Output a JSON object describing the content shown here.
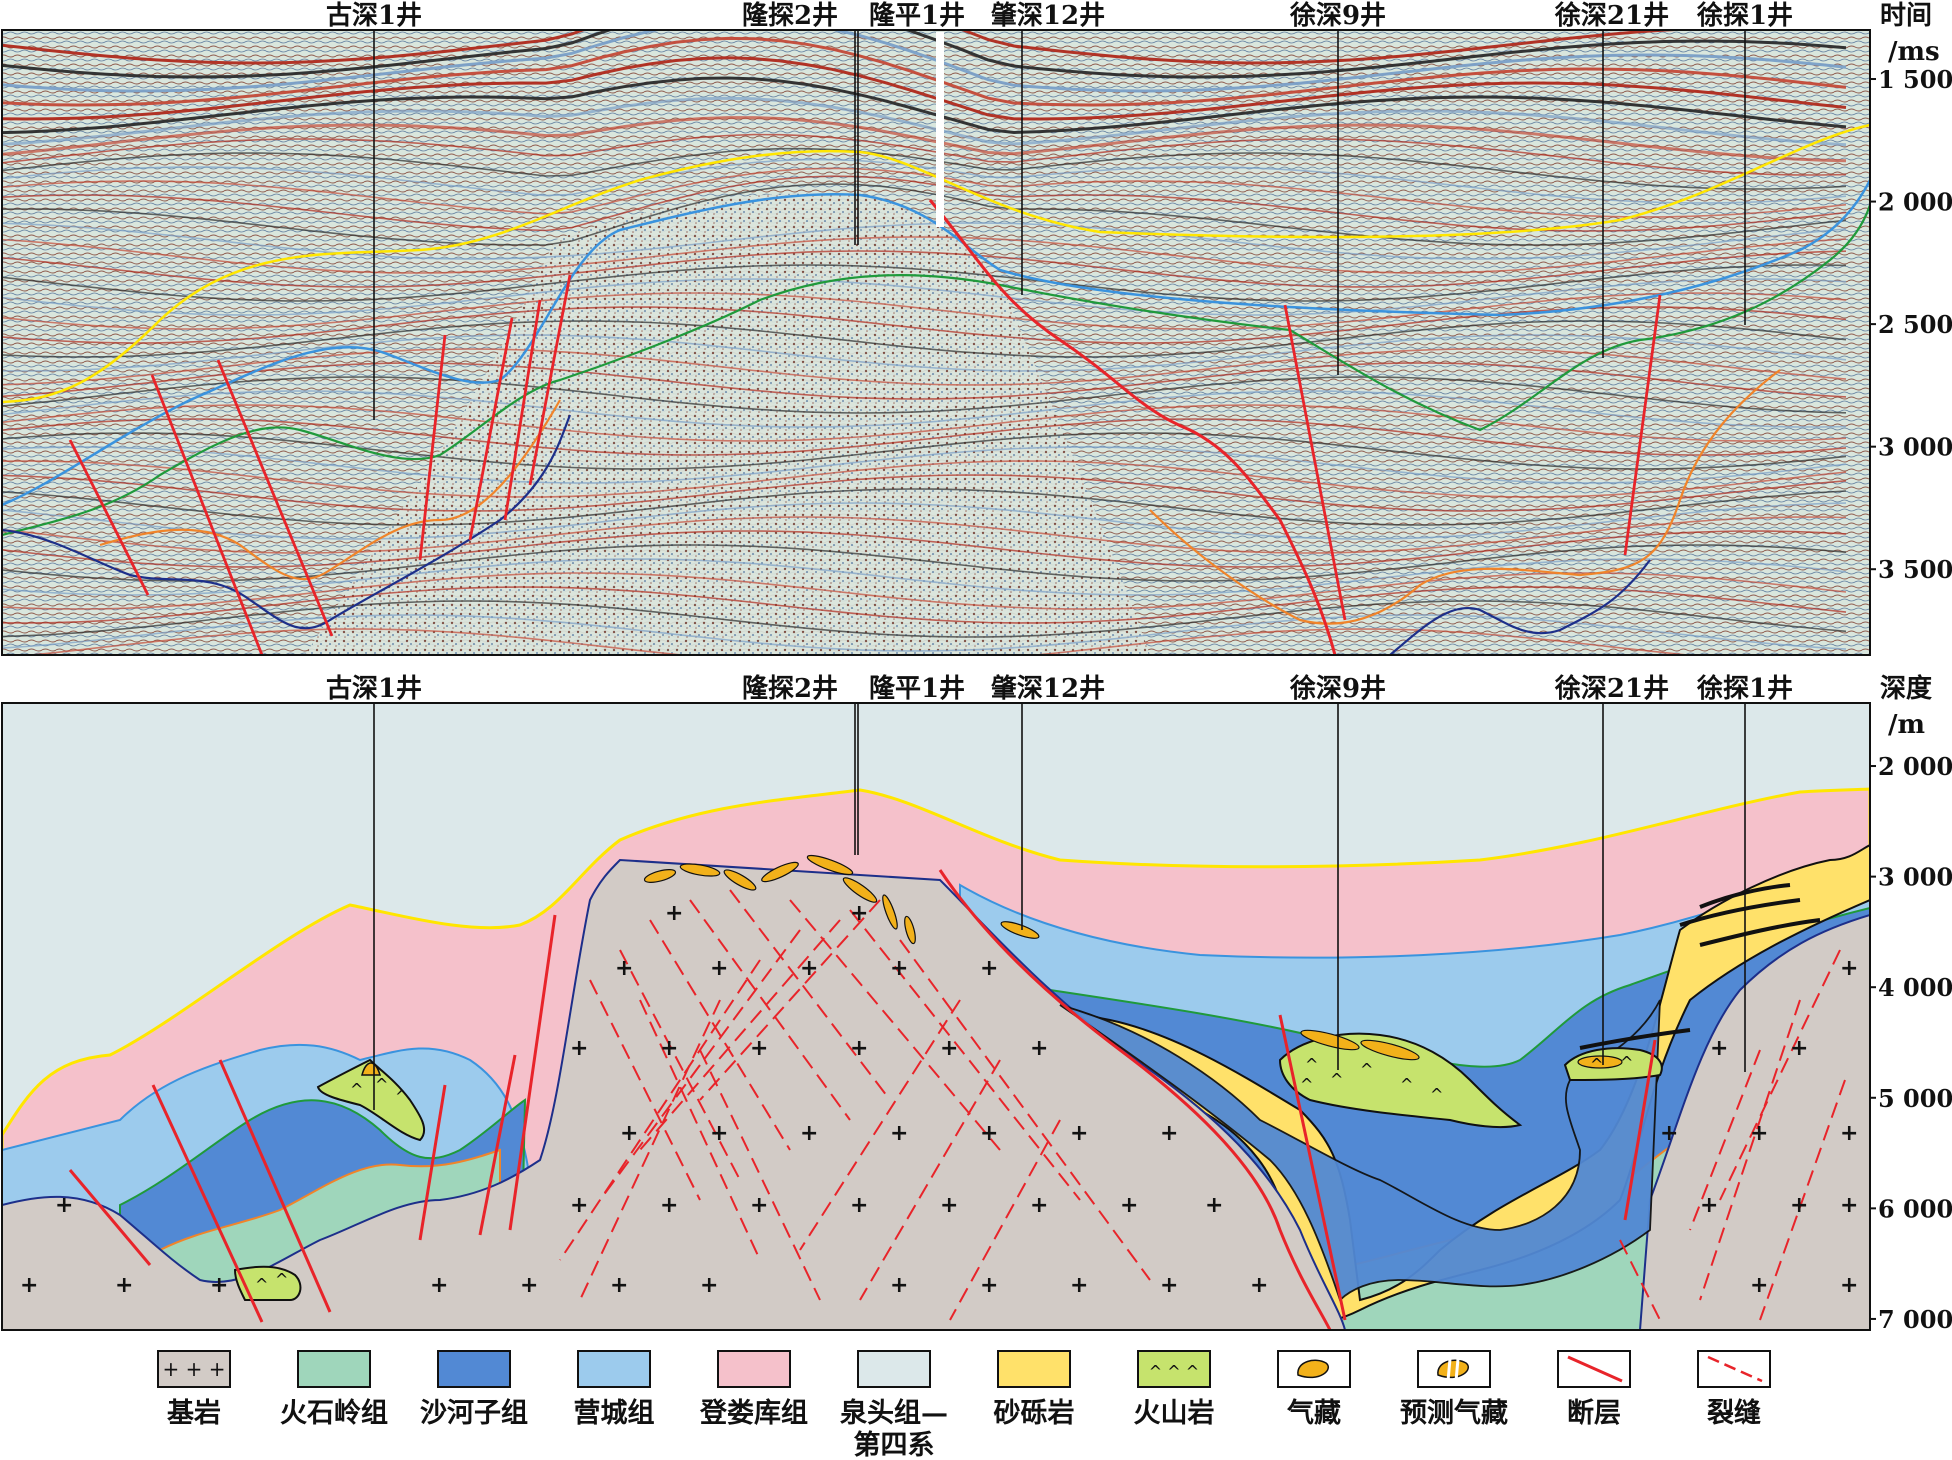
{
  "colors": {
    "basement": "#d2cbc6",
    "huoshiling": "#9fd6bb",
    "shahezi": "#5289d4",
    "yingcheng": "#9ccbed",
    "denglouku": "#f5c1cb",
    "quantou": "#dce8ea",
    "conglomerate": "#ffe16a",
    "volcanic": "#c6e36d",
    "gas": "#f2b11a",
    "fault": "#e8242a",
    "fracture": "#e8242a"
  },
  "seismic": {
    "axis_title_line1": "时间",
    "axis_title_line2": "/ms",
    "ticks": [
      {
        "value": 1500,
        "label": "1 500"
      },
      {
        "value": 2000,
        "label": "2 000"
      },
      {
        "value": 2500,
        "label": "2 500"
      },
      {
        "value": 3000,
        "label": "3 000"
      },
      {
        "value": 3500,
        "label": "3 500"
      }
    ],
    "range_ms": [
      1300,
      3850
    ]
  },
  "section": {
    "axis_title_line1": "深度",
    "axis_title_line2": "/m",
    "ticks": [
      {
        "value": 2000,
        "label": "2 000"
      },
      {
        "value": 3000,
        "label": "3 000"
      },
      {
        "value": 4000,
        "label": "4 000"
      },
      {
        "value": 5000,
        "label": "5 000"
      },
      {
        "value": 6000,
        "label": "6 000"
      },
      {
        "value": 7000,
        "label": "7 000"
      }
    ],
    "range_m": [
      1430,
      7100
    ]
  },
  "wells": [
    {
      "id": "gushen1",
      "label": "古深1井"
    },
    {
      "id": "longtan2",
      "label": "隆探2井"
    },
    {
      "id": "longping1",
      "label": "隆平1井"
    },
    {
      "id": "zhaoshen12",
      "label": "肇深12井"
    },
    {
      "id": "xushen9",
      "label": "徐深9井"
    },
    {
      "id": "xushen21",
      "label": "徐深21井"
    },
    {
      "id": "xutan1",
      "label": "徐探1井"
    }
  ],
  "legend": [
    {
      "id": "basement",
      "label": "基岩",
      "icon": "plus-pattern"
    },
    {
      "id": "huoshiling",
      "label": "火石岭组",
      "icon": "fill"
    },
    {
      "id": "shahezi",
      "label": "沙河子组",
      "icon": "fill"
    },
    {
      "id": "yingcheng",
      "label": "营城组",
      "icon": "fill"
    },
    {
      "id": "denglouku",
      "label": "登娄库组",
      "icon": "fill"
    },
    {
      "id": "quantou",
      "label": "泉头组—",
      "label2": "第四系",
      "icon": "fill"
    },
    {
      "id": "conglomerate",
      "label": "砂砾岩",
      "icon": "fill"
    },
    {
      "id": "volcanic",
      "label": "火山岩",
      "icon": "caret-pattern"
    },
    {
      "id": "gas",
      "label": "气藏",
      "icon": "gas-blob"
    },
    {
      "id": "predicted_gas",
      "label": "预测气藏",
      "icon": "striped-gas-blob"
    },
    {
      "id": "fault",
      "label": "断层",
      "icon": "solid-red-line"
    },
    {
      "id": "fracture",
      "label": "裂缝",
      "icon": "dashed-red-line"
    }
  ]
}
